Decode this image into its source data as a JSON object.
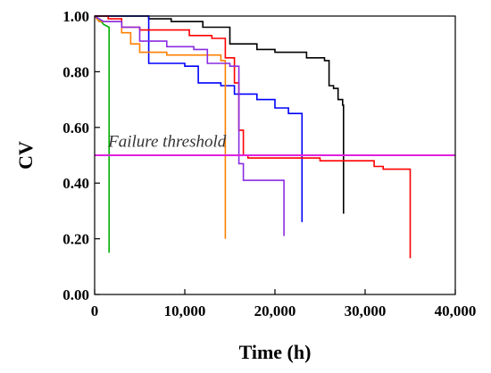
{
  "chart_data": {
    "type": "line",
    "xlabel": "Time (h)",
    "ylabel": "CV",
    "xlim": [
      0,
      40000
    ],
    "ylim": [
      0,
      1
    ],
    "x_ticks": [
      0,
      10000,
      20000,
      30000,
      40000
    ],
    "x_tick_labels": [
      "0",
      "10,000",
      "20,000",
      "30,000",
      "40,000"
    ],
    "y_ticks": [
      0,
      0.2,
      0.4,
      0.6,
      0.8,
      1.0
    ],
    "y_tick_labels": [
      "0.00",
      "0.20",
      "0.40",
      "0.60",
      "0.80",
      "1.00"
    ],
    "grid": false,
    "annotation": {
      "text": "Failure threshold",
      "x": 1500,
      "y": 0.53
    },
    "threshold": {
      "y": 0.5,
      "color": "#e020e0"
    },
    "series": [
      {
        "color": "#00b000",
        "step_points": [
          [
            0,
            1.0
          ],
          [
            500,
            0.99
          ],
          [
            1000,
            0.97
          ],
          [
            1600,
            0.96
          ],
          [
            1600,
            0.15
          ]
        ]
      },
      {
        "color": "#000000",
        "step_points": [
          [
            0,
            1.0
          ],
          [
            6000,
            1.0
          ],
          [
            6000,
            0.99
          ],
          [
            8500,
            0.99
          ],
          [
            8500,
            0.98
          ],
          [
            12000,
            0.98
          ],
          [
            12000,
            0.96
          ],
          [
            15000,
            0.96
          ],
          [
            15000,
            0.9
          ],
          [
            18000,
            0.9
          ],
          [
            18000,
            0.88
          ],
          [
            20000,
            0.88
          ],
          [
            20000,
            0.87
          ],
          [
            23500,
            0.87
          ],
          [
            23500,
            0.85
          ],
          [
            25500,
            0.85
          ],
          [
            25500,
            0.84
          ],
          [
            26000,
            0.84
          ],
          [
            26000,
            0.75
          ],
          [
            26500,
            0.75
          ],
          [
            26500,
            0.74
          ],
          [
            27000,
            0.74
          ],
          [
            27000,
            0.7
          ],
          [
            27500,
            0.7
          ],
          [
            27500,
            0.68
          ],
          [
            27600,
            0.68
          ],
          [
            27600,
            0.29
          ]
        ]
      },
      {
        "color": "#0000ff",
        "step_points": [
          [
            0,
            1.0
          ],
          [
            6000,
            1.0
          ],
          [
            6000,
            0.83
          ],
          [
            10000,
            0.83
          ],
          [
            10000,
            0.82
          ],
          [
            11500,
            0.82
          ],
          [
            11500,
            0.76
          ],
          [
            14000,
            0.76
          ],
          [
            14000,
            0.75
          ],
          [
            15500,
            0.75
          ],
          [
            15500,
            0.72
          ],
          [
            18000,
            0.72
          ],
          [
            18000,
            0.7
          ],
          [
            20000,
            0.7
          ],
          [
            20000,
            0.67
          ],
          [
            21500,
            0.67
          ],
          [
            21500,
            0.65
          ],
          [
            23000,
            0.65
          ],
          [
            23000,
            0.26
          ]
        ]
      },
      {
        "color": "#ff0000",
        "step_points": [
          [
            0,
            1.0
          ],
          [
            1500,
            1.0
          ],
          [
            1500,
            0.99
          ],
          [
            3000,
            0.99
          ],
          [
            3000,
            0.96
          ],
          [
            5000,
            0.96
          ],
          [
            5000,
            0.95
          ],
          [
            10500,
            0.95
          ],
          [
            10500,
            0.93
          ],
          [
            13000,
            0.93
          ],
          [
            13000,
            0.92
          ],
          [
            14500,
            0.92
          ],
          [
            14500,
            0.85
          ],
          [
            15500,
            0.85
          ],
          [
            15500,
            0.76
          ],
          [
            16000,
            0.76
          ],
          [
            16000,
            0.59
          ],
          [
            16500,
            0.59
          ],
          [
            16500,
            0.5
          ],
          [
            17000,
            0.5
          ],
          [
            17000,
            0.49
          ],
          [
            25000,
            0.49
          ],
          [
            25000,
            0.48
          ],
          [
            31000,
            0.48
          ],
          [
            31000,
            0.46
          ],
          [
            32000,
            0.46
          ],
          [
            32000,
            0.45
          ],
          [
            35000,
            0.45
          ],
          [
            35000,
            0.13
          ]
        ]
      },
      {
        "color": "#ff7f00",
        "step_points": [
          [
            0,
            1.0
          ],
          [
            500,
            0.98
          ],
          [
            3000,
            0.98
          ],
          [
            3000,
            0.94
          ],
          [
            4000,
            0.94
          ],
          [
            4000,
            0.9
          ],
          [
            5000,
            0.9
          ],
          [
            5000,
            0.87
          ],
          [
            8000,
            0.87
          ],
          [
            8000,
            0.86
          ],
          [
            14000,
            0.86
          ],
          [
            14000,
            0.84
          ],
          [
            14500,
            0.84
          ],
          [
            14500,
            0.2
          ]
        ]
      },
      {
        "color": "#8a2be2",
        "step_points": [
          [
            0,
            1.0
          ],
          [
            1000,
            0.98
          ],
          [
            3000,
            0.98
          ],
          [
            3000,
            0.96
          ],
          [
            5000,
            0.96
          ],
          [
            5000,
            0.91
          ],
          [
            8000,
            0.91
          ],
          [
            8000,
            0.89
          ],
          [
            11000,
            0.89
          ],
          [
            11000,
            0.88
          ],
          [
            12500,
            0.88
          ],
          [
            12500,
            0.83
          ],
          [
            15000,
            0.83
          ],
          [
            15000,
            0.82
          ],
          [
            16000,
            0.82
          ],
          [
            16000,
            0.47
          ],
          [
            16500,
            0.47
          ],
          [
            16500,
            0.41
          ],
          [
            21000,
            0.41
          ],
          [
            21000,
            0.21
          ]
        ]
      }
    ]
  }
}
